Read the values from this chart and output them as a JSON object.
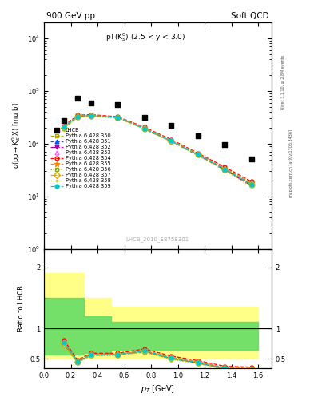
{
  "title_left": "900 GeV pp",
  "title_right": "Soft QCD",
  "subtitle": "pT(K) (2.5 < y < 3.0)",
  "ylabel_main": "σ(pprightarrowK°_S X) [mu b]",
  "ylabel_ratio": "Ratio to LHCB",
  "xlabel": "p_T [GeV]",
  "watermark": "LHCB_2010_S8758301",
  "right_label_top": "Rivet 3.1.10, ≥ 2.8M events",
  "right_label_bot": "mcplots.cern.ch [arXiv:1306.3436]",
  "lhcb_x": [
    0.15,
    0.25,
    0.35,
    0.55,
    0.75,
    0.95,
    1.15,
    1.35,
    1.55
  ],
  "lhcb_y": [
    270,
    720,
    600,
    550,
    310,
    220,
    140,
    95,
    52
  ],
  "pt_x": [
    0.15,
    0.25,
    0.35,
    0.55,
    0.75,
    0.95,
    1.15,
    1.35,
    1.55
  ],
  "pythia_data": {
    "350": {
      "y": [
        195,
        320,
        335,
        310,
        190,
        110,
        60,
        32,
        16
      ],
      "color": "#aaaa00",
      "ls": "--",
      "marker": "s",
      "mfc": "none"
    },
    "351": {
      "y": [
        205,
        330,
        340,
        315,
        195,
        113,
        62,
        33,
        17
      ],
      "color": "#0055ff",
      "ls": "--",
      "marker": "^",
      "mfc": "#0055ff"
    },
    "352": {
      "y": [
        200,
        325,
        337,
        312,
        192,
        111,
        61,
        32,
        16
      ],
      "color": "#aa00aa",
      "ls": "-.",
      "marker": "v",
      "mfc": "#aa00aa"
    },
    "353": {
      "y": [
        210,
        335,
        342,
        317,
        197,
        115,
        63,
        34,
        18
      ],
      "color": "#ff55ff",
      "ls": ":",
      "marker": "^",
      "mfc": "none"
    },
    "354": {
      "y": [
        218,
        345,
        355,
        325,
        205,
        120,
        66,
        36,
        19
      ],
      "color": "#ff0000",
      "ls": "--",
      "marker": "o",
      "mfc": "none"
    },
    "355": {
      "y": [
        210,
        335,
        345,
        318,
        200,
        116,
        64,
        34,
        18
      ],
      "color": "#ff8800",
      "ls": "--",
      "marker": "*",
      "mfc": "#ff8800"
    },
    "356": {
      "y": [
        198,
        320,
        332,
        308,
        191,
        110,
        60,
        31,
        16
      ],
      "color": "#88aa00",
      "ls": ":",
      "marker": "s",
      "mfc": "none"
    },
    "357": {
      "y": [
        202,
        325,
        338,
        312,
        194,
        112,
        62,
        33,
        17
      ],
      "color": "#ddaa00",
      "ls": "-.",
      "marker": "D",
      "mfc": "none"
    },
    "358": {
      "y": [
        193,
        315,
        328,
        305,
        188,
        108,
        59,
        31,
        15
      ],
      "color": "#cccc44",
      "ls": ":",
      "marker": ".",
      "mfc": "#cccc44"
    },
    "359": {
      "y": [
        207,
        330,
        340,
        315,
        195,
        113,
        62,
        33,
        17
      ],
      "color": "#00cccc",
      "ls": "--",
      "marker": "o",
      "mfc": "#00cccc"
    }
  },
  "ylim_main": [
    1,
    20000
  ],
  "ylim_ratio": [
    0.35,
    2.3
  ],
  "xlim": [
    0.0,
    1.7
  ],
  "ratio_bands": {
    "yellow": {
      "edges": [
        0.0,
        0.3,
        0.5,
        1.6
      ],
      "lo": [
        0.5,
        0.5,
        0.5,
        0.5
      ],
      "hi": [
        1.9,
        1.5,
        1.35,
        1.35
      ]
    },
    "green": {
      "edges": [
        0.0,
        0.3,
        0.5,
        1.6
      ],
      "lo": [
        0.57,
        0.6,
        0.65,
        0.65
      ],
      "hi": [
        1.5,
        1.2,
        1.1,
        1.1
      ]
    }
  }
}
